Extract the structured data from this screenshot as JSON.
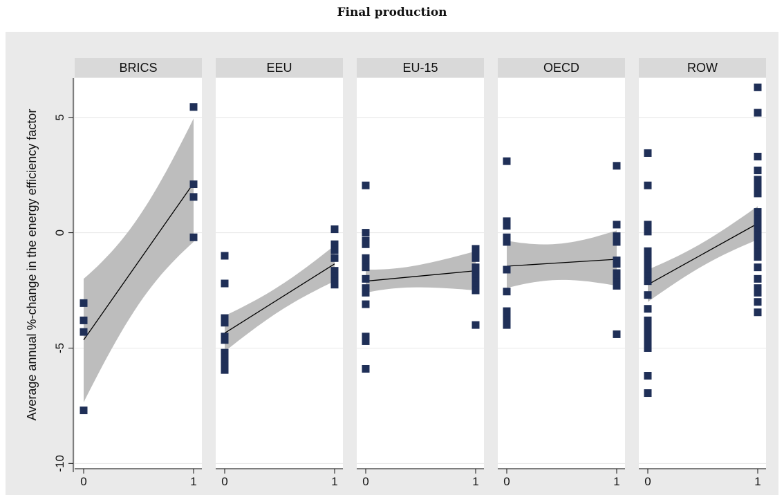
{
  "title": "Final production",
  "chart_data": {
    "type": "scatter",
    "title": "Final production",
    "ylabel": "Average annual %-change in the energy efficiency factor",
    "xlabel": "",
    "ylim": [
      -10.2,
      6.7
    ],
    "yticks": [
      -10,
      -5,
      0,
      5
    ],
    "ytick_labels": [
      "-10",
      "-5",
      "0",
      "5"
    ],
    "xticks": [
      0,
      1
    ],
    "xtick_labels": [
      "0",
      "1"
    ],
    "grid": true,
    "colors": {
      "points": "#1f2f57",
      "band": "#bdbdbd",
      "fit": "#000000",
      "plot_background": "#ffffff",
      "outer_background": "#eaeaea",
      "strip_background": "#d9d9d9"
    },
    "panels": [
      {
        "name": "BRICS",
        "points": {
          "x0": [
            -3.05,
            -3.8,
            -4.3,
            -7.7
          ],
          "x1": [
            5.45,
            2.1,
            1.55,
            -0.2
          ]
        },
        "fit": [
          -4.65,
          2.15
        ],
        "ci_lower_x0": -7.35,
        "ci_upper_x0": -2.0,
        "ci_lower_x1": -0.4,
        "ci_upper_x1": 4.95
      },
      {
        "name": "EEU",
        "points": {
          "x0": [
            -1.0,
            -2.2,
            -3.7,
            -3.9,
            -4.5,
            -4.65,
            -5.2,
            -5.4,
            -5.6,
            -5.8,
            -5.95
          ],
          "x1": [
            0.15,
            -0.5,
            -0.75,
            -1.1,
            -1.65,
            -1.9,
            -2.1,
            -2.25
          ]
        },
        "fit": [
          -4.35,
          -1.35
        ],
        "ci_lower_x0": -5.15,
        "ci_upper_x0": -3.6,
        "ci_lower_x1": -2.1,
        "ci_upper_x1": -0.55
      },
      {
        "name": "EU-15",
        "points": {
          "x0": [
            2.05,
            0.0,
            -0.35,
            -0.5,
            -1.1,
            -1.3,
            -1.5,
            -2.0,
            -2.4,
            -2.6,
            -3.1,
            -4.5,
            -4.7,
            -5.9
          ],
          "x1": [
            -0.7,
            -0.9,
            -1.1,
            -1.5,
            -1.7,
            -1.9,
            -2.1,
            -2.3,
            -2.5,
            -4.0
          ]
        },
        "fit": [
          -2.1,
          -1.65
        ],
        "ci_lower_x0": -2.6,
        "ci_upper_x0": -1.6,
        "ci_lower_x1": -2.5,
        "ci_upper_x1": -0.8
      },
      {
        "name": "OECD",
        "points": {
          "x0": [
            3.1,
            0.5,
            0.3,
            -0.2,
            -0.4,
            -1.6,
            -2.55,
            -3.4,
            -3.6,
            -3.8,
            -4.0
          ],
          "x1": [
            2.9,
            0.35,
            -0.15,
            -0.4,
            -1.2,
            -1.35,
            -1.75,
            -1.95,
            -2.15,
            -2.3,
            -4.4
          ]
        },
        "fit": [
          -1.45,
          -1.15
        ],
        "ci_lower_x0": -2.4,
        "ci_upper_x0": -0.35,
        "ci_lower_x1": -2.3,
        "ci_upper_x1": 0.1
      },
      {
        "name": "ROW",
        "points": {
          "x0": [
            3.45,
            2.05,
            0.35,
            0.05,
            -0.8,
            -1.05,
            -1.2,
            -1.4,
            -1.7,
            -1.9,
            -2.1,
            -2.7,
            -3.3,
            -3.8,
            -4.0,
            -4.3,
            -4.5,
            -4.7,
            -4.9,
            -5.0,
            -6.2,
            -6.95
          ],
          "x1": [
            6.3,
            5.2,
            3.3,
            2.7,
            2.3,
            2.0,
            1.7,
            0.9,
            0.6,
            0.35,
            0.1,
            -0.1,
            -0.35,
            -0.6,
            -0.85,
            -1.05,
            -1.5,
            -2.0,
            -2.4,
            -2.6,
            -3.0,
            -3.45
          ]
        },
        "fit": [
          -2.25,
          0.4
        ],
        "ci_lower_x0": -3.0,
        "ci_upper_x0": -1.6,
        "ci_lower_x1": -0.3,
        "ci_upper_x1": 1.15
      }
    ]
  }
}
